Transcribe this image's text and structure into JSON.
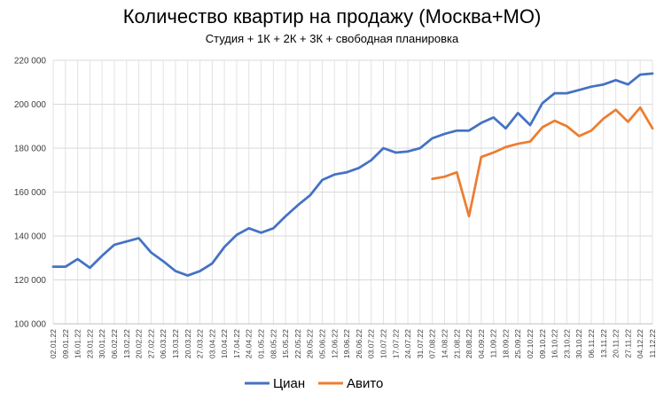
{
  "chart_data": {
    "type": "line",
    "title": "Количество квартир на продажу (Москва+МО)",
    "subtitle": "Студия + 1К + 2К + 3К + свободная планировка",
    "ylim": [
      100000,
      220000
    ],
    "yticks": [
      "100 000",
      "120 000",
      "140 000",
      "160 000",
      "180 000",
      "200 000",
      "220 000"
    ],
    "ytick_values": [
      100000,
      120000,
      140000,
      160000,
      180000,
      200000,
      220000
    ],
    "grid": true,
    "legend_position": "bottom",
    "categories": [
      "02.01.22",
      "09.01.22",
      "16.01.22",
      "23.01.22",
      "30.01.22",
      "06.02.22",
      "13.02.22",
      "20.02.22",
      "27.02.22",
      "06.03.22",
      "13.03.22",
      "20.03.22",
      "27.03.22",
      "03.04.22",
      "10.04.22",
      "17.04.22",
      "24.04.22",
      "01.05.22",
      "08.05.22",
      "15.05.22",
      "22.05.22",
      "29.05.22",
      "05.06.22",
      "12.06.22",
      "19.06.22",
      "26.06.22",
      "03.07.22",
      "10.07.22",
      "17.07.22",
      "24.07.22",
      "31.07.22",
      "07.08.22",
      "14.08.22",
      "21.08.22",
      "28.08.22",
      "04.09.22",
      "11.09.22",
      "18.09.22",
      "25.09.22",
      "02.10.22",
      "09.10.22",
      "16.10.22",
      "23.10.22",
      "30.10.22",
      "06.11.22",
      "13.11.22",
      "20.11.22",
      "27.11.22",
      "04.12.22",
      "11.12.22"
    ],
    "series": [
      {
        "name": "Циан",
        "color": "#4472C4",
        "values": [
          126000,
          126000,
          129500,
          125500,
          131000,
          136000,
          137500,
          139000,
          132500,
          128500,
          124000,
          122000,
          124000,
          127500,
          135000,
          140500,
          143500,
          141500,
          143500,
          149000,
          154000,
          158500,
          165500,
          168000,
          169000,
          171000,
          174500,
          180000,
          178000,
          178500,
          180000,
          184500,
          186500,
          188000,
          188000,
          191500,
          194000,
          189000,
          196000,
          190500,
          200500,
          205000,
          205000,
          206500,
          208000,
          209000,
          211000,
          209000,
          213500,
          214000
        ]
      },
      {
        "name": "Авито",
        "color": "#ED7D31",
        "values": [
          null,
          null,
          null,
          null,
          null,
          null,
          null,
          null,
          null,
          null,
          null,
          null,
          null,
          null,
          null,
          null,
          null,
          null,
          null,
          null,
          null,
          null,
          null,
          null,
          null,
          null,
          null,
          null,
          null,
          null,
          null,
          166000,
          167000,
          169000,
          149000,
          176000,
          178000,
          180500,
          182000,
          183000,
          189500,
          192500,
          190000,
          185500,
          188000,
          193500,
          197500,
          192000,
          198500,
          189000
        ]
      }
    ]
  }
}
